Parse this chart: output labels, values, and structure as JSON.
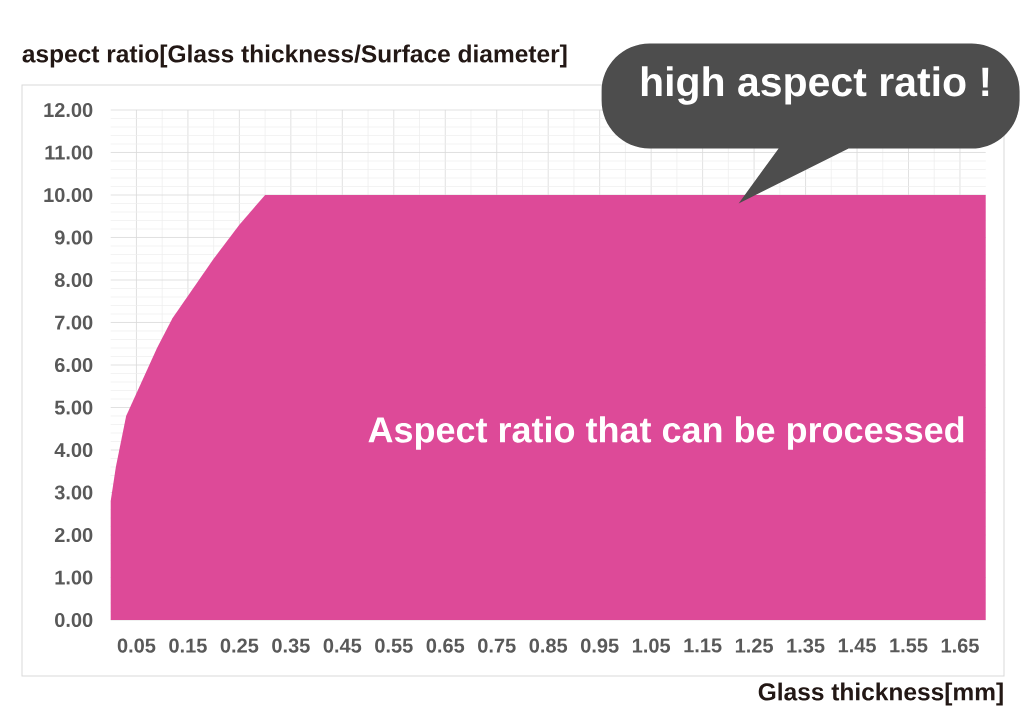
{
  "chart_data": {
    "type": "area",
    "xlabel": "Glass thickness[mm]",
    "ylabel": "aspect ratio[Glass thickness/Surface diameter]",
    "x": [
      0,
      0.01,
      0.03,
      0.06,
      0.09,
      0.12,
      0.16,
      0.2,
      0.25,
      0.3,
      1.7
    ],
    "values": [
      2.8,
      3.6,
      4.8,
      5.6,
      6.4,
      7.1,
      7.8,
      8.5,
      9.3,
      10,
      10
    ],
    "color": "#dd4a98",
    "xlim": [
      0,
      1.7
    ],
    "ylim": [
      0,
      12
    ],
    "xticks": [
      0.05,
      0.15,
      0.25,
      0.35,
      0.45,
      0.55,
      0.65,
      0.75,
      0.85,
      0.95,
      1.05,
      1.15,
      1.25,
      1.35,
      1.45,
      1.55,
      1.65
    ],
    "yticks": [
      {
        "value": 0,
        "label": "0.00"
      },
      {
        "value": 1,
        "label": "1.00"
      },
      {
        "value": 2,
        "label": "2.00"
      },
      {
        "value": 3,
        "label": "3.00"
      },
      {
        "value": 4,
        "label": "4.00"
      },
      {
        "value": 5,
        "label": "5.00"
      },
      {
        "value": 6,
        "label": "6.00"
      },
      {
        "value": 7,
        "label": "7.00"
      },
      {
        "value": 8,
        "label": "8.00"
      },
      {
        "value": 9,
        "label": "9.00"
      },
      {
        "value": 10,
        "label": "10.00"
      },
      {
        "value": 11,
        "label": "11.00"
      },
      {
        "value": 12,
        "label": "12.00"
      }
    ],
    "grid": true,
    "annotations": [
      "high aspect ratio !",
      "Aspect ratio that can be processed"
    ]
  }
}
